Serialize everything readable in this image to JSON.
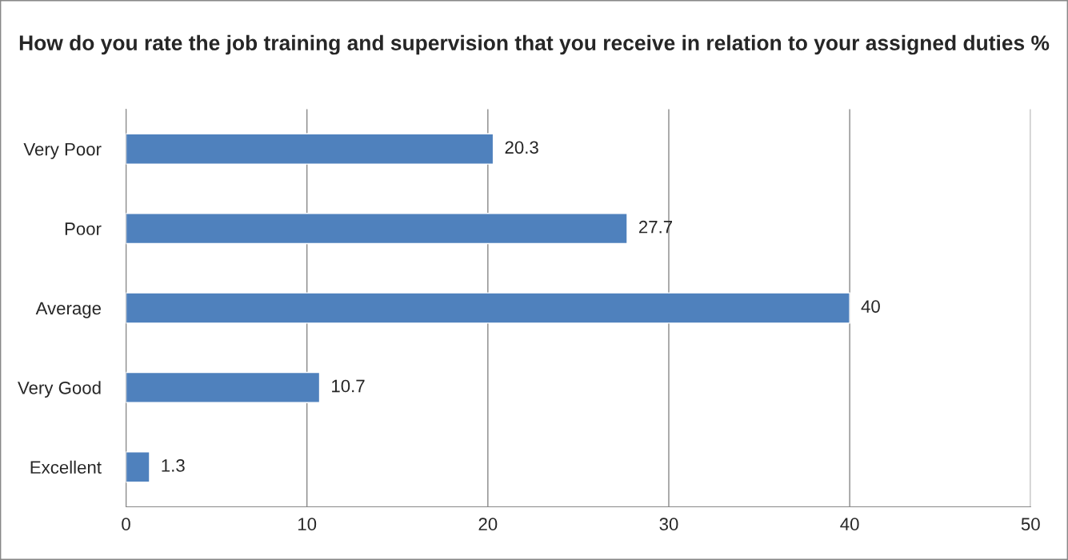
{
  "chart_data": {
    "type": "bar",
    "orientation": "horizontal",
    "title": "How do you rate the job training and supervision that you receive in relation to your assigned duties %",
    "categories": [
      "Very Poor",
      "Poor",
      "Average",
      "Very Good",
      "Excellent"
    ],
    "values": [
      20.3,
      27.7,
      40,
      10.7,
      1.3
    ],
    "color": "#4f81bd",
    "xlim": [
      0,
      50
    ],
    "xticks": [
      0,
      10,
      20,
      30,
      40,
      50
    ],
    "grid": "x",
    "data_labels": true
  }
}
